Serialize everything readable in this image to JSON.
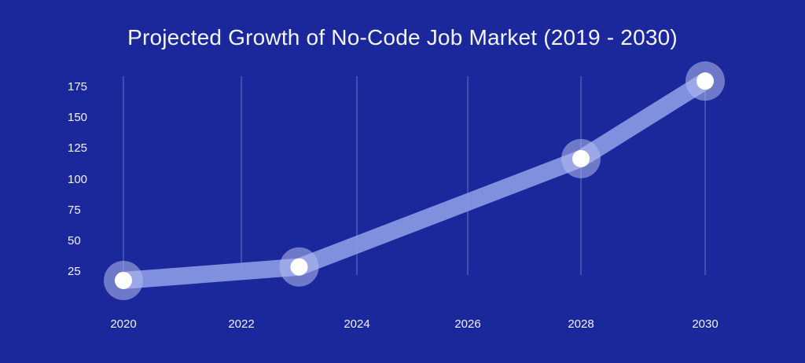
{
  "title": "Projected Growth of No-Code Job Market (2019 - 2030)",
  "colors": {
    "background": "#1b289c",
    "line": "#8c9be6",
    "halo": "#b4bcf0",
    "point": "#ffffff",
    "grid": "#4d5bb8"
  },
  "chart_data": {
    "type": "line",
    "title": "Projected Growth of No-Code Job Market (2019 - 2030)",
    "xlabel": "",
    "ylabel": "",
    "x_ticks": [
      "2020",
      "2022",
      "2024",
      "2026",
      "2028",
      "2030"
    ],
    "y_ticks": [
      "175",
      "150",
      "125",
      "100",
      "75",
      "50",
      "25"
    ],
    "ylim": [
      25,
      175
    ],
    "xlim": [
      2020,
      2030
    ],
    "grid": "vertical",
    "legend": "none",
    "series": [
      {
        "name": "No-Code Job Market",
        "x": [
          2020,
          2023,
          2028,
          2030
        ],
        "values": [
          18,
          29,
          117,
          180
        ]
      }
    ]
  }
}
